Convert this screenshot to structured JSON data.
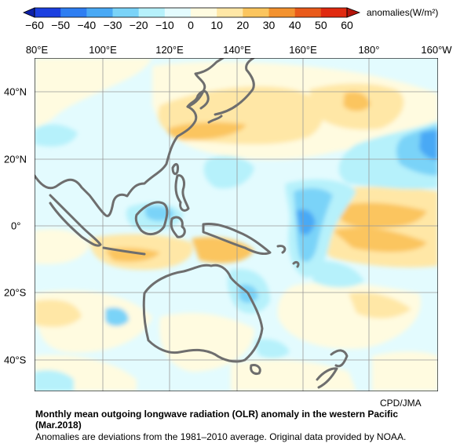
{
  "colorbar": {
    "title": "anomalies(W/m²)",
    "ticks": [
      "−60",
      "−50",
      "−40",
      "−30",
      "−20",
      "−10",
      "0",
      "10",
      "20",
      "30",
      "40",
      "50",
      "60"
    ],
    "colors": [
      "#1b3fe0",
      "#2e7ef2",
      "#49a9f5",
      "#7ad3f8",
      "#b6f1fb",
      "#e3fbfe",
      "#fffbe0",
      "#ffe7a6",
      "#fbc55e",
      "#f3922f",
      "#e95a1a",
      "#e02a10"
    ]
  },
  "map": {
    "lon_labels": [
      "80°E",
      "100°E",
      "120°E",
      "140°E",
      "160°E",
      "180°",
      "160°W"
    ],
    "lat_labels": [
      "40°N",
      "20°N",
      "0°",
      "20°S",
      "40°S"
    ],
    "coastline_color": "#6e6e6e",
    "grid_color": "#999999",
    "credit": "CPD/JMA"
  },
  "caption": {
    "title_line1": "Monthly mean outgoing longwave radiation (OLR) anomaly in the western Pacific",
    "title_line2": "(Mar.2018)",
    "note": "Anomalies are deviations from the 1981–2010 average. Original data provided by NOAA."
  }
}
